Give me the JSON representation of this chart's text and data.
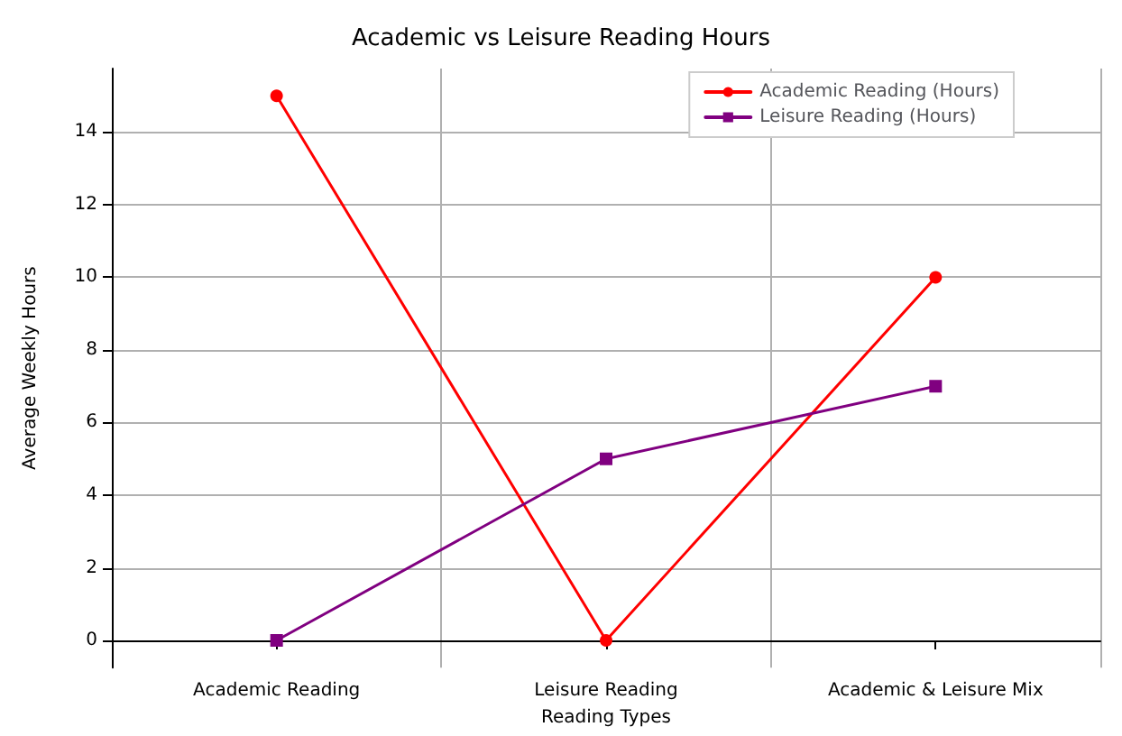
{
  "chart_data": {
    "type": "line",
    "title": "Academic vs Leisure Reading Hours",
    "xlabel": "Reading Types",
    "ylabel": "Average Weekly Hours",
    "categories": [
      "Academic Reading",
      "Leisure Reading",
      "Academic & Leisure Mix"
    ],
    "series": [
      {
        "name": "Academic Reading (Hours)",
        "color": "#ff0000",
        "marker": "circle",
        "values": [
          15,
          0,
          10
        ]
      },
      {
        "name": "Leisure Reading (Hours)",
        "color": "#800080",
        "marker": "square",
        "values": [
          0,
          5,
          7
        ]
      }
    ],
    "ylim": [
      -0.75,
      15.75
    ],
    "yticks": [
      0,
      2,
      4,
      6,
      8,
      10,
      12,
      14
    ],
    "grid": true,
    "legend": "top right",
    "line_style": "solid"
  }
}
